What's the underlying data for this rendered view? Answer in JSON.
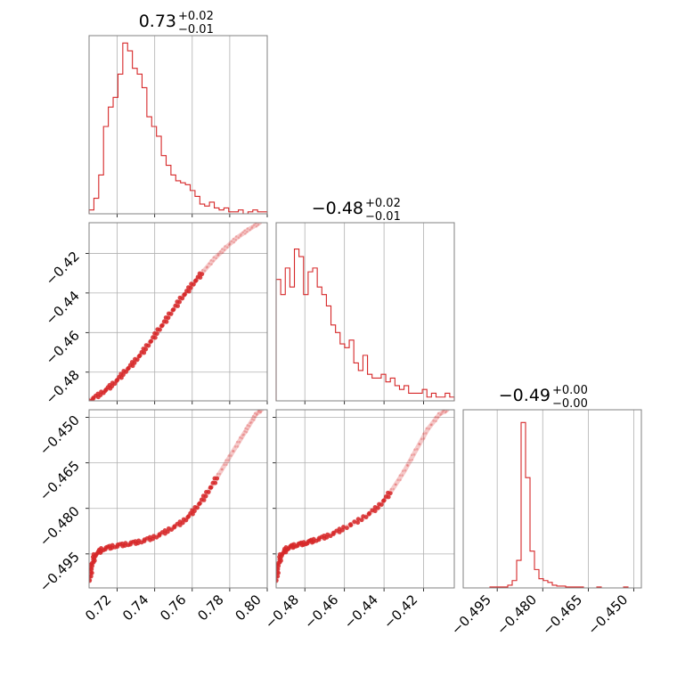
{
  "chart_data": {
    "type": "corner",
    "series_color": "#d62728",
    "grid": true,
    "parameters": [
      {
        "range": [
          0.705,
          0.8
        ],
        "ticks": [
          0.72,
          0.74,
          0.76,
          0.78,
          0.8
        ],
        "tick_labels": [
          "0.72",
          "0.74",
          "0.76",
          "0.78",
          "0.80"
        ]
      },
      {
        "range": [
          -0.4945,
          -0.4045
        ],
        "ticks": [
          -0.48,
          -0.46,
          -0.44,
          -0.42
        ],
        "tick_labels": [
          "−0.48",
          "−0.46",
          "−0.44",
          "−0.42"
        ]
      },
      {
        "range": [
          -0.5062,
          -0.4475
        ],
        "ticks": [
          -0.495,
          -0.48,
          -0.465,
          -0.45
        ],
        "tick_labels": [
          "−0.495",
          "−0.480",
          "−0.465",
          "−0.450"
        ]
      }
    ],
    "titles": [
      {
        "main": "0.73",
        "upper": "+0.02",
        "lower": "−0.01"
      },
      {
        "main": "−0.48",
        "upper": "+0.02",
        "lower": "−0.01"
      },
      {
        "main": "−0.49",
        "upper": "+0.00",
        "lower": "−0.00"
      }
    ],
    "histograms": [
      {
        "counts": [
          2,
          8,
          20,
          45,
          55,
          60,
          72,
          88,
          84,
          75,
          72,
          65,
          50,
          45,
          40,
          30,
          25,
          20,
          17,
          16,
          15,
          12,
          9,
          5,
          4,
          6,
          3,
          2,
          3,
          1,
          1,
          2,
          0,
          1,
          2,
          1,
          1
        ],
        "ymax": 90
      },
      {
        "counts": [
          32,
          28,
          35,
          30,
          40,
          38,
          28,
          34,
          35,
          30,
          28,
          25,
          20,
          18,
          15,
          14,
          16,
          10,
          8,
          12,
          7,
          6,
          6,
          7,
          5,
          6,
          4,
          3,
          4,
          2,
          2,
          2,
          3,
          1,
          2,
          1,
          1,
          2,
          1
        ],
        "ymax": 46
      },
      {
        "counts": [
          0,
          0,
          0,
          0,
          0,
          0,
          1,
          1,
          1,
          1,
          3,
          8,
          30,
          180,
          120,
          40,
          20,
          10,
          8,
          6,
          3,
          2,
          2,
          1,
          1,
          1,
          1,
          0,
          0,
          0,
          1,
          0,
          0,
          0,
          0,
          0,
          1,
          0,
          0,
          0
        ],
        "ymax": 190
      }
    ],
    "scatter_curve_12": [
      [
        0.705,
        -0.4945
      ],
      [
        0.712,
        -0.4905
      ],
      [
        0.718,
        -0.486
      ],
      [
        0.724,
        -0.48
      ],
      [
        0.73,
        -0.474
      ],
      [
        0.736,
        -0.467
      ],
      [
        0.742,
        -0.459
      ],
      [
        0.748,
        -0.451
      ],
      [
        0.754,
        -0.443
      ],
      [
        0.76,
        -0.436
      ],
      [
        0.766,
        -0.429
      ],
      [
        0.772,
        -0.4225
      ],
      [
        0.778,
        -0.417
      ],
      [
        0.784,
        -0.412
      ],
      [
        0.79,
        -0.408
      ],
      [
        0.796,
        -0.4045
      ]
    ],
    "scatter_curve_13": [
      [
        0.7052,
        -0.504
      ],
      [
        0.7065,
        -0.499
      ],
      [
        0.708,
        -0.4955
      ],
      [
        0.712,
        -0.4935
      ],
      [
        0.718,
        -0.4925
      ],
      [
        0.725,
        -0.4918
      ],
      [
        0.732,
        -0.491
      ],
      [
        0.74,
        -0.4895
      ],
      [
        0.748,
        -0.487
      ],
      [
        0.756,
        -0.484
      ],
      [
        0.762,
        -0.48
      ],
      [
        0.768,
        -0.475
      ],
      [
        0.774,
        -0.469
      ],
      [
        0.78,
        -0.463
      ],
      [
        0.786,
        -0.457
      ],
      [
        0.79,
        -0.453
      ],
      [
        0.794,
        -0.449
      ],
      [
        0.797,
        -0.4475
      ]
    ],
    "scatter_curve_23": [
      [
        -0.4945,
        -0.504
      ],
      [
        -0.4935,
        -0.499
      ],
      [
        -0.492,
        -0.4955
      ],
      [
        -0.489,
        -0.4932
      ],
      [
        -0.485,
        -0.4922
      ],
      [
        -0.48,
        -0.4915
      ],
      [
        -0.475,
        -0.4905
      ],
      [
        -0.468,
        -0.489
      ],
      [
        -0.46,
        -0.4865
      ],
      [
        -0.45,
        -0.483
      ],
      [
        -0.442,
        -0.479
      ],
      [
        -0.436,
        -0.474
      ],
      [
        -0.43,
        -0.468
      ],
      [
        -0.424,
        -0.461
      ],
      [
        -0.418,
        -0.454
      ],
      [
        -0.412,
        -0.449
      ],
      [
        -0.408,
        -0.4475
      ]
    ]
  }
}
